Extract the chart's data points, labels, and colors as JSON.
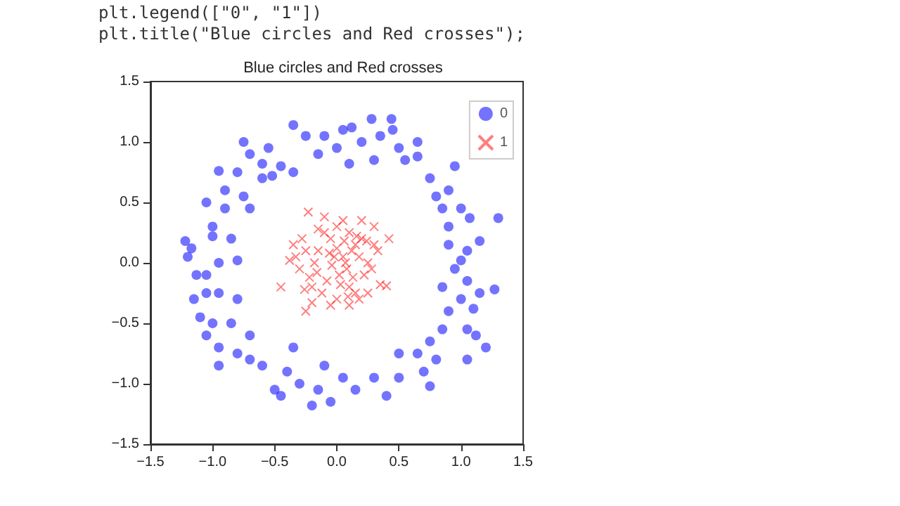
{
  "chart_data": {
    "type": "scatter",
    "title": "Blue circles and Red crosses",
    "annotations": [
      "plt.legend([\"0\", \"1\"])",
      "plt.title(\"Blue circles and Red crosses\");"
    ],
    "xlim": [
      -1.5,
      1.5
    ],
    "ylim": [
      -1.5,
      1.5
    ],
    "xticks": [
      {
        "value": -1.5,
        "label": "−1.5"
      },
      {
        "value": -1,
        "label": "−1.0"
      },
      {
        "value": -0.5,
        "label": "−0.5"
      },
      {
        "value": 0,
        "label": "0.0"
      },
      {
        "value": 0.5,
        "label": "0.5"
      },
      {
        "value": 1,
        "label": "1.0"
      },
      {
        "value": 1.5,
        "label": "1.5"
      }
    ],
    "yticks": [
      {
        "value": -1.5,
        "label": "−1.5"
      },
      {
        "value": -1,
        "label": "−1.0"
      },
      {
        "value": -0.5,
        "label": "−0.5"
      },
      {
        "value": 0,
        "label": "0.0"
      },
      {
        "value": 0.5,
        "label": "0.5"
      },
      {
        "value": 1,
        "label": "1.0"
      },
      {
        "value": 1.5,
        "label": "1.5"
      }
    ],
    "grid": false,
    "legend": "top right",
    "series": [
      {
        "name": "0",
        "color": "#0000ff",
        "marker": "circle",
        "x": [
          1.3,
          1.27,
          -1.22,
          -1.17,
          -1.13,
          -1.05,
          -1.0,
          -1.05,
          -0.95,
          -0.7,
          -0.6,
          -0.52,
          -0.35,
          -0.25,
          -0.1,
          0.0,
          0.05,
          0.2,
          0.28,
          0.44,
          0.45,
          0.55,
          0.65,
          0.75,
          0.9,
          1.0,
          1.07,
          0.85,
          0.9,
          1.05,
          1.15,
          0.95,
          1.05,
          1.0,
          1.15,
          1.1,
          0.9,
          0.85,
          1.05,
          1.12,
          0.75,
          0.65,
          0.5,
          0.7,
          0.75,
          0.5,
          0.3,
          0.15,
          0.05,
          -0.05,
          -0.2,
          -0.15,
          -0.3,
          -0.4,
          -0.45,
          -0.5,
          -0.6,
          -0.7,
          -0.8,
          -0.95,
          -0.95,
          -1.05,
          -1.0,
          -1.1,
          -0.85,
          -0.8,
          -0.95,
          -1.05,
          -0.95,
          -0.8,
          -0.85,
          -1.0,
          -0.9,
          -0.75,
          -0.7,
          -0.6,
          -0.8,
          -0.45,
          -0.35,
          -0.15,
          0.1,
          0.3,
          0.5,
          0.65,
          0.8,
          0.9,
          1.0,
          0.85,
          0.8,
          0.4,
          -0.1,
          -0.35,
          -0.7,
          -1.15,
          -1.2,
          -0.9,
          -0.75,
          -0.55,
          0.12,
          0.35,
          0.95,
          1.05,
          1.2
        ],
        "values": [
          0.37,
          -0.22,
          0.18,
          0.12,
          -0.1,
          -0.25,
          0.22,
          0.5,
          0.76,
          0.9,
          0.82,
          0.72,
          1.14,
          1.05,
          1.05,
          0.95,
          1.1,
          1.0,
          1.19,
          1.19,
          1.1,
          0.85,
          0.88,
          0.7,
          0.6,
          0.45,
          0.37,
          0.45,
          0.15,
          0.1,
          0.18,
          -0.05,
          -0.15,
          -0.3,
          -0.25,
          -0.38,
          -0.4,
          -0.55,
          -0.55,
          -0.6,
          -0.65,
          -0.75,
          -0.75,
          -0.9,
          -1.02,
          -0.95,
          -0.95,
          -1.05,
          -0.95,
          -1.15,
          -1.18,
          -1.05,
          -1.0,
          -0.9,
          -1.1,
          -1.05,
          -0.85,
          -0.8,
          -0.75,
          -0.85,
          -0.7,
          -0.6,
          -0.5,
          -0.45,
          -0.5,
          -0.3,
          -0.25,
          -0.1,
          0.0,
          0.02,
          0.2,
          0.3,
          0.45,
          0.55,
          0.45,
          0.7,
          0.75,
          0.8,
          0.75,
          0.9,
          0.82,
          0.85,
          0.95,
          1.0,
          0.55,
          0.3,
          0.02,
          -0.2,
          -0.8,
          -1.1,
          -0.85,
          -0.7,
          -0.6,
          -0.3,
          0.05,
          0.6,
          1.0,
          0.95,
          1.12,
          1.05,
          0.8,
          -0.8,
          -0.7
        ]
      },
      {
        "name": "1",
        "color": "#ff0000",
        "marker": "cross",
        "x": [
          -0.23,
          -0.45,
          -0.38,
          -0.35,
          0.35,
          0.42,
          0.4,
          -0.25,
          -0.2,
          0.3,
          0.2,
          -0.1,
          0.0,
          0.1,
          0.15,
          -0.05,
          0.05,
          -0.15,
          0.25,
          -0.3,
          0.22,
          -0.25,
          0.1,
          -0.12,
          0.0,
          0.18,
          -0.08,
          0.08,
          0.28,
          -0.18,
          0.12,
          -0.02,
          0.02,
          -0.28,
          0.3,
          0.15,
          -0.2,
          0.05,
          -0.1,
          0.2,
          -0.05,
          0.1,
          0.25,
          -0.15,
          0.0,
          0.07,
          -0.22,
          0.18,
          -0.04,
          0.13,
          0.33,
          -0.33,
          0.06,
          -0.16,
          0.24,
          -0.06,
          0.16,
          -0.26,
          0.03,
          0.09
        ],
        "values": [
          0.42,
          -0.2,
          0.02,
          0.15,
          -0.18,
          0.2,
          -0.19,
          -0.4,
          -0.33,
          0.3,
          0.35,
          0.38,
          0.3,
          0.25,
          0.15,
          0.2,
          0.05,
          0.1,
          0.0,
          -0.05,
          -0.1,
          0.1,
          -0.2,
          -0.25,
          -0.3,
          -0.3,
          -0.15,
          -0.05,
          -0.05,
          0.0,
          0.1,
          0.05,
          -0.1,
          0.2,
          0.15,
          -0.25,
          -0.2,
          0.35,
          0.25,
          0.2,
          -0.35,
          -0.35,
          -0.25,
          0.28,
          0.12,
          0.0,
          -0.12,
          0.05,
          -0.02,
          -0.12,
          0.1,
          0.05,
          0.18,
          -0.08,
          0.18,
          0.08,
          0.22,
          -0.22,
          -0.18,
          -0.28
        ]
      }
    ]
  }
}
